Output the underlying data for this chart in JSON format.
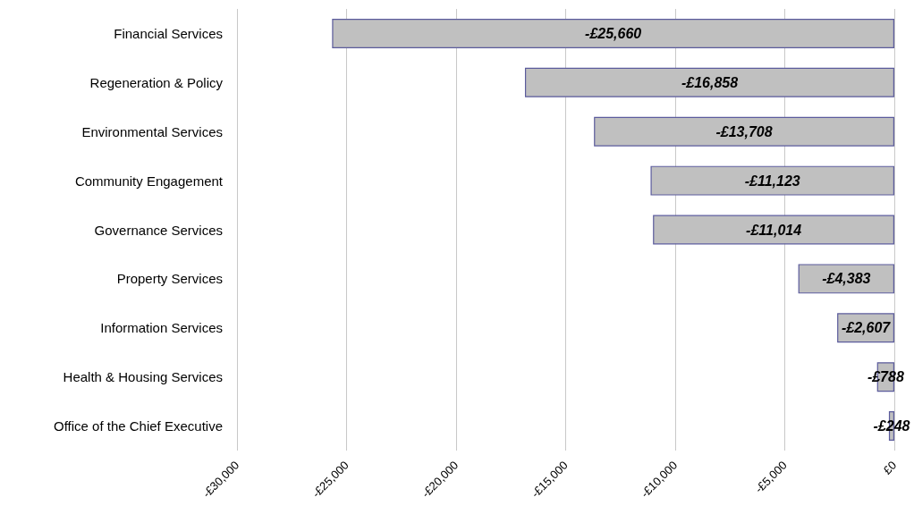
{
  "chart_data": {
    "type": "bar",
    "orientation": "horizontal",
    "categories": [
      "Financial Services",
      "Regeneration & Policy",
      "Environmental Services",
      "Community Engagement",
      "Governance Services",
      "Property Services",
      "Information Services",
      "Health & Housing Services",
      "Office of the Chief Executive"
    ],
    "values": [
      -25660,
      -16858,
      -13708,
      -11123,
      -11014,
      -4383,
      -2607,
      -788,
      -248
    ],
    "value_labels": [
      "-£25,660",
      "-£16,858",
      "-£13,708",
      "-£11,123",
      "-£11,014",
      "-£4,383",
      "-£2,607",
      "-£788",
      "-£248"
    ],
    "color": "#c0c0c0",
    "xlim": [
      -30000,
      0
    ],
    "xticks": [
      {
        "value": -30000,
        "label": "-£30,000"
      },
      {
        "value": -25000,
        "label": "-£25,000"
      },
      {
        "value": -20000,
        "label": "-£20,000"
      },
      {
        "value": -15000,
        "label": "-£15,000"
      },
      {
        "value": -10000,
        "label": "-£10,000"
      },
      {
        "value": -5000,
        "label": "-£5,000"
      },
      {
        "value": 0,
        "label": "£0"
      }
    ],
    "grid": "x"
  }
}
